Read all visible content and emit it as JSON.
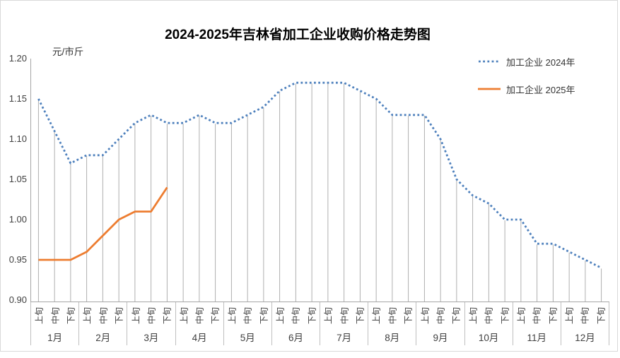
{
  "title": "2024-2025年吉林省加工企业收购价格走势图",
  "y_axis_unit": "元/市斤",
  "accent_colors": {
    "series_2024_blue": "#4f81bd",
    "series_2025_orange": "#ed7d31",
    "drop_line_gray": "#a6a6a6",
    "axis_border_gray": "#bfbfbf"
  },
  "chart_data": {
    "type": "line",
    "title": "2024-2025年吉林省加工企业收购价格走势图",
    "xlabel": "",
    "ylabel": "元/市斤",
    "ylim": [
      0.9,
      1.2
    ],
    "ytick_labels": [
      "1.20",
      "1.15",
      "1.10",
      "1.05",
      "1.00",
      "0.95",
      "0.90"
    ],
    "x_months": [
      "1月",
      "2月",
      "3月",
      "4月",
      "5月",
      "6月",
      "7月",
      "8月",
      "9月",
      "10月",
      "11月",
      "12月"
    ],
    "x_periods": [
      "上旬",
      "中旬",
      "下旬"
    ],
    "grid": "vertical-drop-lines-only",
    "legend_position": "top-right",
    "series": [
      {
        "name": "加工企业 2024年",
        "color": "#4f81bd",
        "line_style": "dotted",
        "values": [
          1.15,
          1.11,
          1.07,
          1.08,
          1.08,
          1.1,
          1.12,
          1.13,
          1.12,
          1.12,
          1.13,
          1.12,
          1.12,
          1.13,
          1.14,
          1.16,
          1.17,
          1.17,
          1.17,
          1.17,
          1.16,
          1.15,
          1.13,
          1.13,
          1.13,
          1.1,
          1.05,
          1.03,
          1.02,
          1.0,
          1.0,
          0.97,
          0.97,
          0.96,
          0.95,
          0.94
        ]
      },
      {
        "name": "加工企业 2025年",
        "color": "#ed7d31",
        "line_style": "solid",
        "values": [
          0.95,
          0.95,
          0.95,
          0.96,
          0.98,
          1.0,
          1.01,
          1.01,
          1.04
        ]
      }
    ]
  }
}
